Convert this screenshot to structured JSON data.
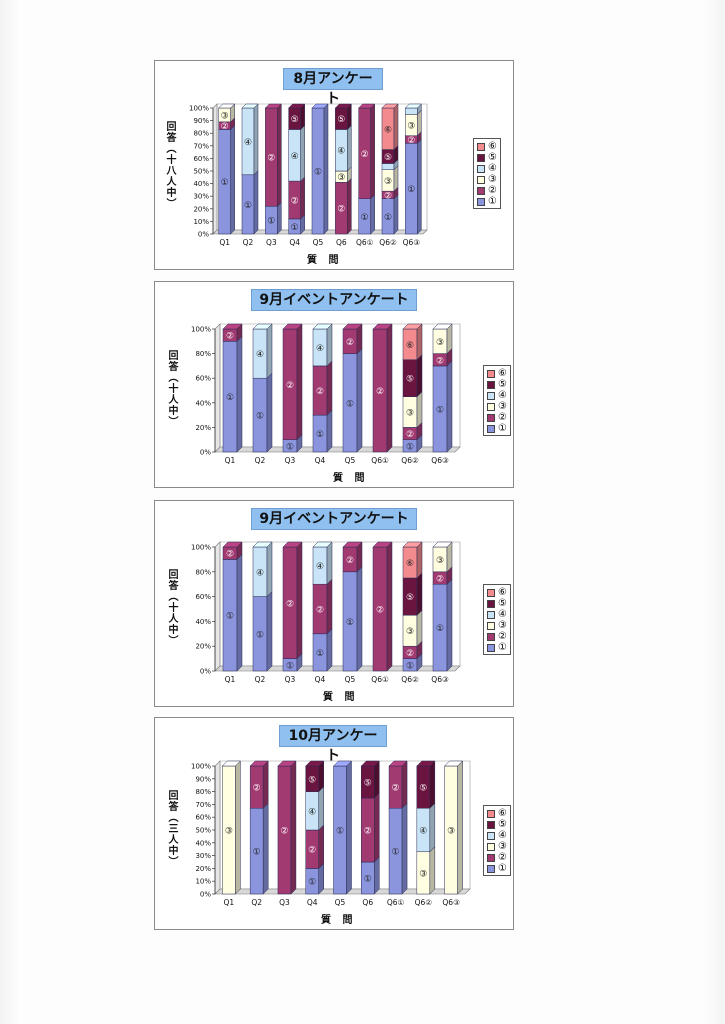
{
  "colors": {
    "c1": "#8b95de",
    "c2": "#a23a72",
    "c3": "#fffee0",
    "c4": "#c8e4f6",
    "c5": "#6a1540",
    "c6": "#f28a8e"
  },
  "chart_data": [
    {
      "type": "bar",
      "stacked": true,
      "title": "8月アンケート",
      "ylabel": "回答（十八人中）",
      "xlabel": "質 問",
      "categories": [
        "Q1",
        "Q2",
        "Q3",
        "Q4",
        "Q5",
        "Q6",
        "Q6①",
        "Q6②",
        "Q6③"
      ],
      "yticks": [
        "0%",
        "10%",
        "20%",
        "30%",
        "40%",
        "50%",
        "60%",
        "70%",
        "80%",
        "90%",
        "100%"
      ],
      "ylim": [
        0,
        100
      ],
      "legend": [
        "⑥",
        "⑤",
        "④",
        "③",
        "②",
        "①"
      ],
      "legend_placement": "right",
      "series": [
        {
          "name": "①",
          "values": [
            83,
            47,
            22,
            12,
            100,
            0,
            28,
            28,
            72
          ]
        },
        {
          "name": "②",
          "values": [
            6,
            0,
            78,
            30,
            0,
            41,
            72,
            6,
            6
          ]
        },
        {
          "name": "③",
          "values": [
            11,
            0,
            0,
            0,
            0,
            9,
            0,
            17,
            17
          ]
        },
        {
          "name": "④",
          "values": [
            0,
            53,
            0,
            41,
            0,
            33,
            0,
            5,
            5
          ]
        },
        {
          "name": "⑤",
          "values": [
            0,
            0,
            0,
            17,
            0,
            17,
            0,
            11,
            0
          ]
        },
        {
          "name": "⑥",
          "values": [
            0,
            0,
            0,
            0,
            0,
            0,
            0,
            33,
            0
          ]
        }
      ]
    },
    {
      "type": "bar",
      "stacked": true,
      "title": "9月イベントアンケート",
      "ylabel": "回答（十人中）",
      "xlabel": "質 問",
      "categories": [
        "Q1",
        "Q2",
        "Q3",
        "Q4",
        "Q5",
        "Q6①",
        "Q6②",
        "Q6③"
      ],
      "yticks": [
        "0%",
        "20%",
        "40%",
        "60%",
        "80%",
        "100%"
      ],
      "ylim": [
        0,
        100
      ],
      "legend": [
        "⑥",
        "⑤",
        "④",
        "③",
        "②",
        "①"
      ],
      "legend_placement": "right",
      "series": [
        {
          "name": "①",
          "values": [
            90,
            60,
            10,
            30,
            80,
            0,
            10,
            70
          ]
        },
        {
          "name": "②",
          "values": [
            10,
            0,
            90,
            40,
            20,
            100,
            10,
            10
          ]
        },
        {
          "name": "③",
          "values": [
            0,
            0,
            0,
            0,
            0,
            0,
            25,
            20
          ]
        },
        {
          "name": "④",
          "values": [
            0,
            40,
            0,
            30,
            0,
            0,
            0,
            0
          ]
        },
        {
          "name": "⑤",
          "values": [
            0,
            0,
            0,
            0,
            0,
            0,
            30,
            0
          ]
        },
        {
          "name": "⑥",
          "values": [
            0,
            0,
            0,
            0,
            0,
            0,
            25,
            0
          ]
        }
      ]
    },
    {
      "type": "bar",
      "stacked": true,
      "title": "9月イベントアンケート",
      "ylabel": "回答（十人中）",
      "xlabel": "質 問",
      "categories": [
        "Q1",
        "Q2",
        "Q3",
        "Q4",
        "Q5",
        "Q6①",
        "Q6②",
        "Q6③"
      ],
      "yticks": [
        "0%",
        "20%",
        "40%",
        "60%",
        "80%",
        "100%"
      ],
      "ylim": [
        0,
        100
      ],
      "legend": [
        "⑥",
        "⑤",
        "④",
        "③",
        "②",
        "①"
      ],
      "legend_placement": "right",
      "series": [
        {
          "name": "①",
          "values": [
            90,
            60,
            10,
            30,
            80,
            0,
            10,
            70
          ]
        },
        {
          "name": "②",
          "values": [
            10,
            0,
            90,
            40,
            20,
            100,
            10,
            10
          ]
        },
        {
          "name": "③",
          "values": [
            0,
            0,
            0,
            0,
            0,
            0,
            25,
            20
          ]
        },
        {
          "name": "④",
          "values": [
            0,
            40,
            0,
            30,
            0,
            0,
            0,
            0
          ]
        },
        {
          "name": "⑤",
          "values": [
            0,
            0,
            0,
            0,
            0,
            0,
            30,
            0
          ]
        },
        {
          "name": "⑥",
          "values": [
            0,
            0,
            0,
            0,
            0,
            0,
            25,
            0
          ]
        }
      ]
    },
    {
      "type": "bar",
      "stacked": true,
      "title": "10月アンケート",
      "ylabel": "回答（三人中）",
      "xlabel": "質 問",
      "categories": [
        "Q1",
        "Q2",
        "Q3",
        "Q4",
        "Q5",
        "Q6",
        "Q6①",
        "Q6②",
        "Q6③"
      ],
      "yticks": [
        "0%",
        "10%",
        "20%",
        "30%",
        "40%",
        "50%",
        "60%",
        "70%",
        "80%",
        "90%",
        "100%"
      ],
      "ylim": [
        0,
        100
      ],
      "legend": [
        "⑥",
        "⑤",
        "④",
        "③",
        "②",
        "①"
      ],
      "legend_placement": "right",
      "series": [
        {
          "name": "①",
          "values": [
            0,
            67,
            0,
            20,
            100,
            25,
            67,
            0,
            0
          ]
        },
        {
          "name": "②",
          "values": [
            0,
            33,
            100,
            30,
            0,
            50,
            33,
            0,
            0
          ]
        },
        {
          "name": "③",
          "values": [
            100,
            0,
            0,
            0,
            0,
            0,
            0,
            33,
            100
          ]
        },
        {
          "name": "④",
          "values": [
            0,
            0,
            0,
            30,
            0,
            0,
            0,
            34,
            0
          ]
        },
        {
          "name": "⑤",
          "values": [
            0,
            0,
            0,
            20,
            0,
            25,
            0,
            33,
            0
          ]
        },
        {
          "name": "⑥",
          "values": [
            0,
            0,
            0,
            0,
            0,
            0,
            0,
            0,
            0
          ]
        }
      ]
    }
  ]
}
